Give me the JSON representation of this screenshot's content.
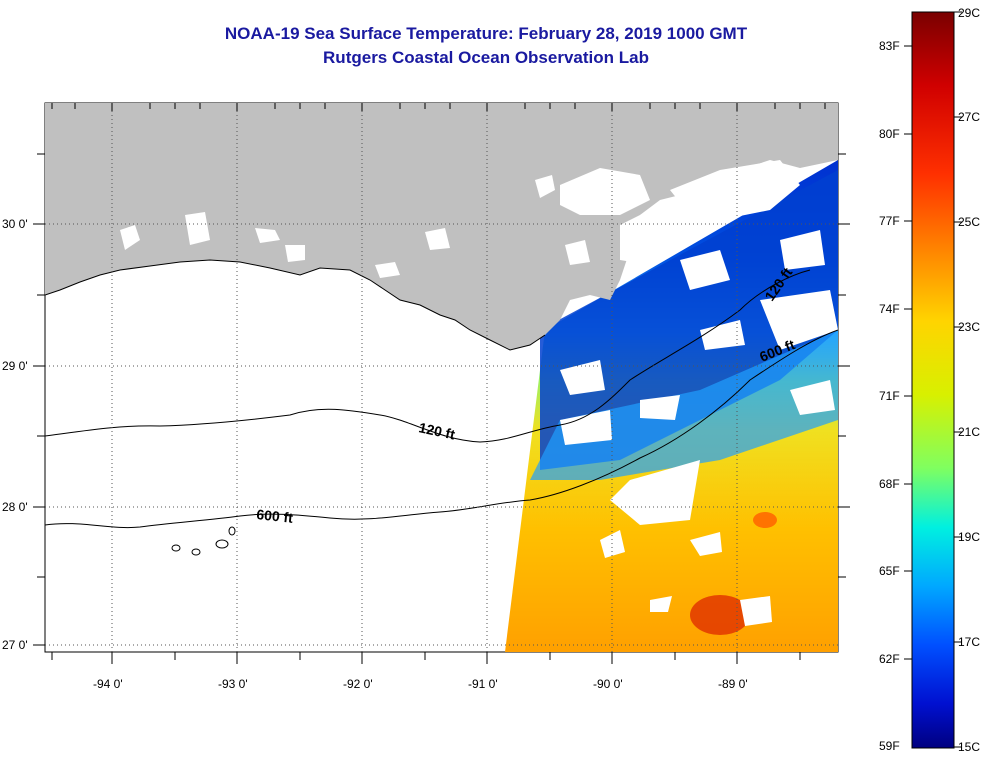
{
  "title": {
    "line1": "NOAA-19 Sea Surface Temperature:  February 28, 2019 1000 GMT",
    "line2": "Rutgers Coastal Ocean Observation Lab"
  },
  "map": {
    "lon_labels": [
      "-94 0'",
      "-93 0'",
      "-92 0'",
      "-91 0'",
      "-90 0'",
      "-89 0'"
    ],
    "lat_labels": [
      "30 0'",
      "29 0'",
      "28 0'",
      "27 0'"
    ],
    "contour_labels": [
      "120 ft",
      "600 ft",
      "120 ft",
      "600 ft"
    ],
    "colors": {
      "land": "#c0c0c0",
      "cloud": "#ffffff",
      "frame": "#000000"
    }
  },
  "colorbar": {
    "fahrenheit_labels": [
      "83F",
      "80F",
      "77F",
      "74F",
      "71F",
      "68F",
      "65F",
      "62F",
      "59F"
    ],
    "celsius_labels": [
      "29C",
      "27C",
      "25C",
      "23C",
      "21C",
      "19C",
      "17C",
      "15C"
    ],
    "colors": [
      "#7a0000",
      "#d00000",
      "#ff3000",
      "#ff8a00",
      "#ffd400",
      "#d8f000",
      "#7fff60",
      "#00f0e0",
      "#00a8ff",
      "#0050ff",
      "#0010d0",
      "#000080"
    ]
  }
}
